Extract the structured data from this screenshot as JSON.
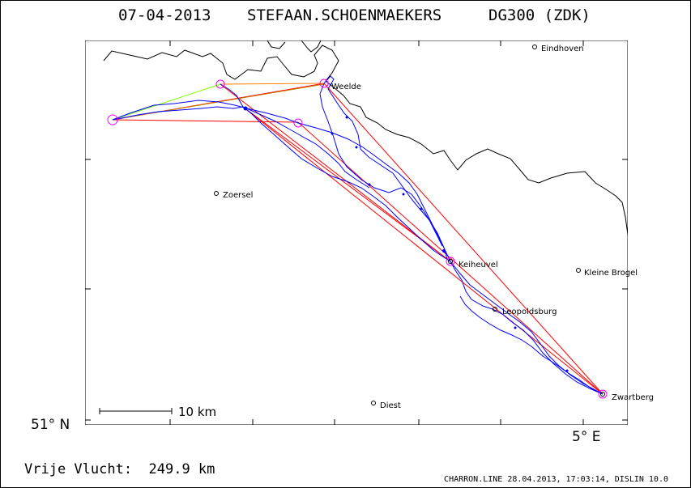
{
  "header": {
    "date": "07-04-2013",
    "pilot": "STEFAAN.SCHOENMAEKERS",
    "glider": "DG300 (ZDK)"
  },
  "axes": {
    "lat_label": "51° N",
    "lon_label": "5° E"
  },
  "scale_bar": {
    "label": "10 km"
  },
  "places": [
    {
      "name": "Eindhoven"
    },
    {
      "name": "Weelde"
    },
    {
      "name": "Zoersel"
    },
    {
      "name": "Keiheuvel"
    },
    {
      "name": "Kleine Brogel"
    },
    {
      "name": "Leopoldsburg"
    },
    {
      "name": "Diest"
    },
    {
      "name": "Zwartberg"
    }
  ],
  "footer": {
    "distance": "Vrije Vlucht:  249.9 km",
    "credits": "CHARRON.LINE 28.04.2013, 17:03:14, DISLIN 10.0"
  },
  "colors": {
    "track": "#0000ff",
    "task_lines": "#ff0000",
    "start_leg": "#80ff00",
    "turnpoint": "#ff00ff",
    "orange_leg": "#ff8000",
    "border": "#000000"
  }
}
